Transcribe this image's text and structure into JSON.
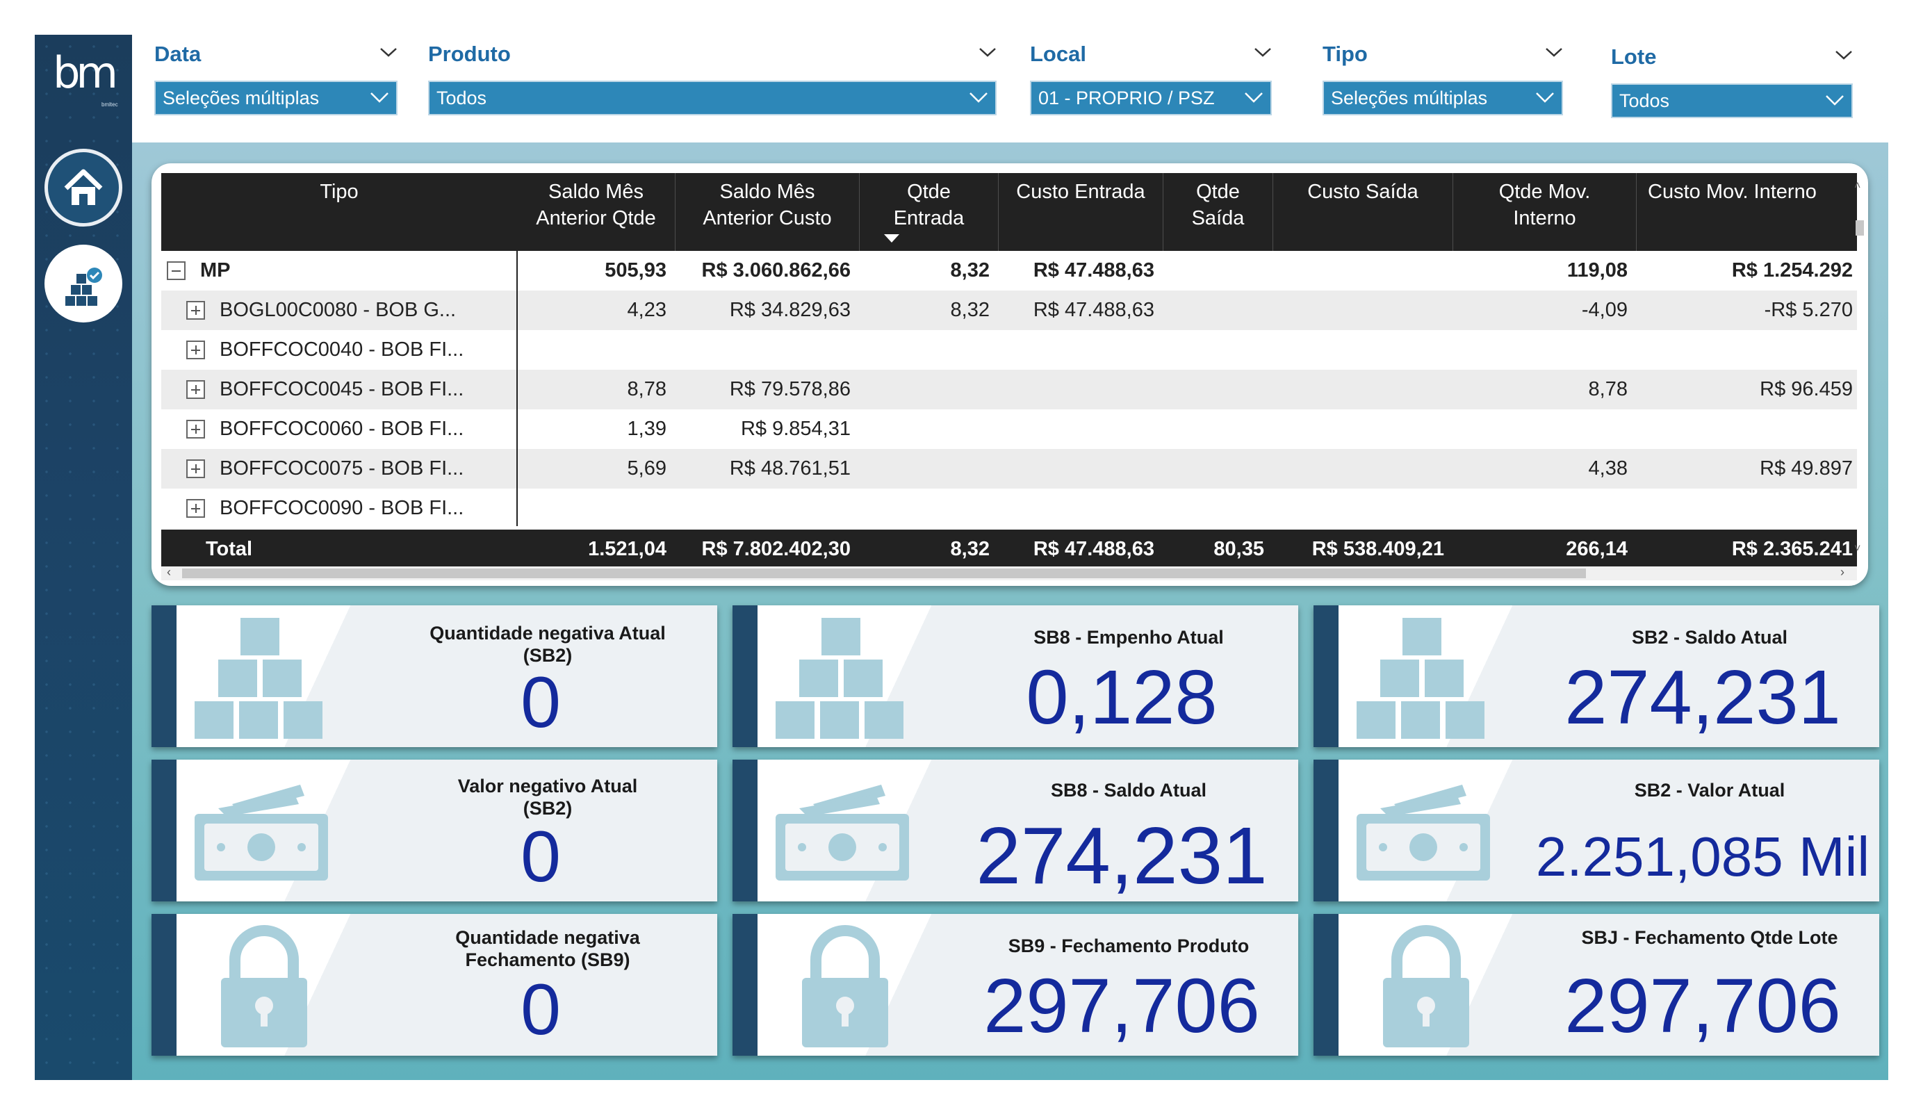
{
  "sidebar": {
    "logo_text": "bm",
    "logo_sub": "bmltec",
    "nav": [
      {
        "name": "home",
        "icon": "home-icon"
      },
      {
        "name": "stock",
        "icon": "stock-boxes-icon"
      }
    ]
  },
  "filters": {
    "data": {
      "title": "Data",
      "value": "Seleções múltiplas"
    },
    "produto": {
      "title": "Produto",
      "value": "Todos"
    },
    "local": {
      "title": "Local",
      "value": "01 - PROPRIO / PSZ"
    },
    "tipo": {
      "title": "Tipo",
      "value": "Seleções múltiplas"
    },
    "lote": {
      "title": "Lote",
      "value": "Todos"
    }
  },
  "table": {
    "headers": [
      "Tipo",
      "Saldo Mês\nAnterior Qtde",
      "Saldo Mês\nAnterior Custo",
      "Qtde\nEntrada",
      "Custo Entrada",
      "Qtde\nSaída",
      "Custo Saída",
      "Qtde Mov.\nInterno",
      "Custo Mov. Interno"
    ],
    "rows": [
      {
        "label": "MP",
        "values": [
          "505,93",
          "R$ 3.060.862,66",
          "8,32",
          "R$ 47.488,63",
          "",
          "",
          "119,08",
          "R$ 1.254.292"
        ]
      },
      {
        "label": "BOGL00C0080 - BOB G...",
        "values": [
          "4,23",
          "R$ 34.829,63",
          "8,32",
          "R$ 47.488,63",
          "",
          "",
          "-4,09",
          "-R$ 5.270"
        ]
      },
      {
        "label": "BOFFCOC0040 - BOB FI...",
        "values": [
          "",
          "",
          "",
          "",
          "",
          "",
          "",
          ""
        ]
      },
      {
        "label": "BOFFCOC0045 - BOB FI...",
        "values": [
          "8,78",
          "R$ 79.578,86",
          "",
          "",
          "",
          "",
          "8,78",
          "R$ 96.459"
        ]
      },
      {
        "label": "BOFFCOC0060 - BOB FI...",
        "values": [
          "1,39",
          "R$ 9.854,31",
          "",
          "",
          "",
          "",
          "",
          ""
        ]
      },
      {
        "label": "BOFFCOC0075 - BOB FI...",
        "values": [
          "5,69",
          "R$ 48.761,51",
          "",
          "",
          "",
          "",
          "4,38",
          "R$ 49.897"
        ]
      },
      {
        "label": "BOFFCOC0090 - BOB FI...",
        "values": [
          "",
          "",
          "",
          "",
          "",
          "",
          "",
          ""
        ]
      }
    ],
    "total": {
      "label": "Total",
      "values": [
        "1.521,04",
        "R$ 7.802.402,30",
        "8,32",
        "R$ 47.488,63",
        "80,35",
        "R$ 538.409,21",
        "266,14",
        "R$ 2.365.241"
      ]
    }
  },
  "cards": [
    {
      "label": "Quantidade negativa Atual\n(SB2)",
      "value": "0",
      "icon": "boxes-icon"
    },
    {
      "label": "SB8 - Empenho Atual",
      "value": "0,128",
      "icon": "boxes-icon"
    },
    {
      "label": "SB2 - Saldo Atual",
      "value": "274,231",
      "icon": "boxes-icon"
    },
    {
      "label": "Valor negativo Atual\n(SB2)",
      "value": "0",
      "icon": "money-icon"
    },
    {
      "label": "SB8 - Saldo Atual",
      "value": "274,231",
      "icon": "money-icon"
    },
    {
      "label": "SB2 - Valor Atual",
      "value": "2.251,085 Mil",
      "icon": "money-icon"
    },
    {
      "label": "Quantidade negativa\nFechamento (SB9)",
      "value": "0",
      "icon": "lock-icon"
    },
    {
      "label": "SB9 - Fechamento Produto",
      "value": "297,706",
      "icon": "lock-icon"
    },
    {
      "label": "SBJ - Fechamento Qtde Lote",
      "value": "297,706",
      "icon": "lock-icon"
    }
  ],
  "colors": {
    "sidebar": "#1c4366",
    "accent": "#2d87b8",
    "title_blue": "#1f6aa5",
    "kpi_value": "#142a9c",
    "icon_light_blue": "#a9cfdb"
  }
}
